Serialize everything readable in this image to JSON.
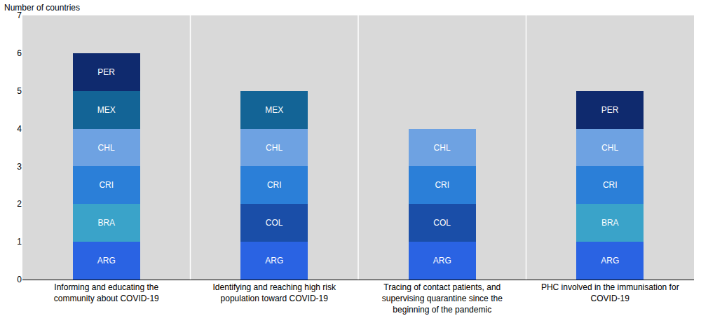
{
  "chart_data": {
    "type": "bar",
    "stacked": true,
    "y_label": "Number of countries",
    "categories": [
      "Informing and educating the community about COVID-19",
      "Identifying and reaching high risk population toward COVID-19",
      "Tracing of contact patients, and supervising quarantine since the beginning of the pandemic",
      "PHC involved in the immunisation for COVID-19"
    ],
    "series": [
      {
        "name": "ARG",
        "color": "#2a63e3",
        "values": [
          1,
          1,
          1,
          1
        ]
      },
      {
        "name": "BRA",
        "color": "#3aa3c9",
        "values": [
          1,
          null,
          null,
          1
        ]
      },
      {
        "name": "COL",
        "color": "#1a4ea8",
        "values": [
          null,
          1,
          1,
          null
        ]
      },
      {
        "name": "CRI",
        "color": "#2b7fd8",
        "values": [
          1,
          1,
          1,
          1
        ]
      },
      {
        "name": "CHL",
        "color": "#6ea2e2",
        "values": [
          1,
          1,
          1,
          1
        ]
      },
      {
        "name": "MEX",
        "color": "#136496",
        "values": [
          1,
          1,
          null,
          null
        ]
      },
      {
        "name": "PER",
        "color": "#0f2a6e",
        "values": [
          1,
          null,
          null,
          1
        ]
      }
    ],
    "ylim": [
      0,
      7
    ],
    "yticks": [
      0,
      1,
      2,
      3,
      4,
      5,
      6,
      7
    ],
    "grid": false,
    "legend": "none"
  }
}
